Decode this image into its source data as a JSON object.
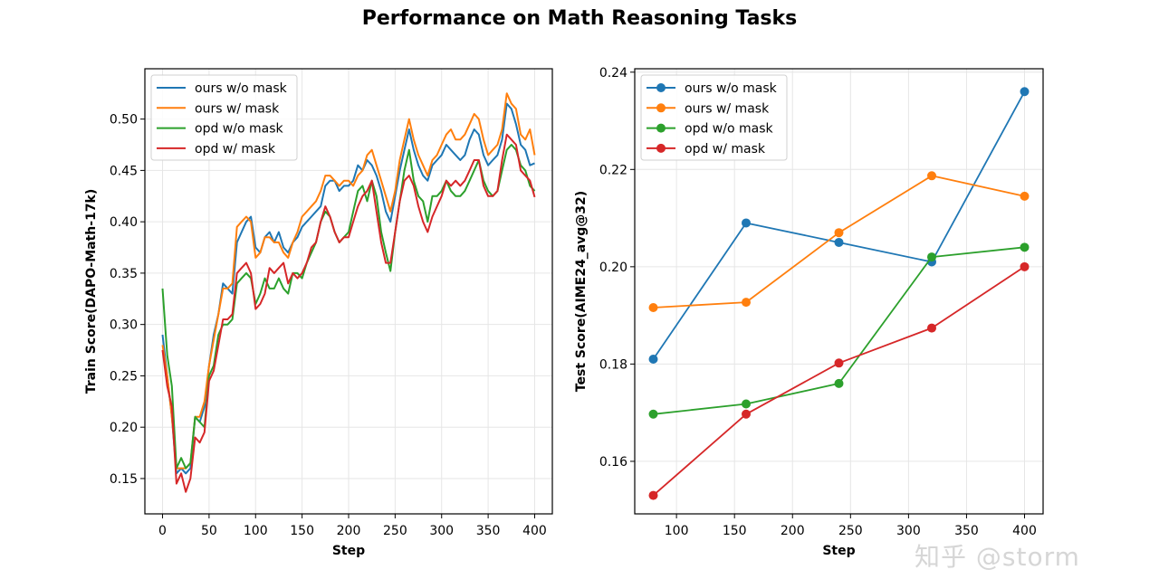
{
  "title": "Performance on Math Reasoning Tasks",
  "watermark": "知乎 @storm",
  "chart_data": [
    {
      "type": "line",
      "xlabel": "Step",
      "ylabel": "Train Score(DAPO-Math-17k)",
      "xlim": [
        -19,
        419
      ],
      "ylim": [
        0.1156,
        0.549
      ],
      "xticks": [
        "0",
        "50",
        "100",
        "150",
        "200",
        "250",
        "300",
        "350",
        "400"
      ],
      "yticks": [
        "0.15",
        "0.20",
        "0.25",
        "0.30",
        "0.35",
        "0.40",
        "0.45",
        "0.50"
      ],
      "grid": true,
      "legend": "top-left",
      "x": [
        0,
        5,
        10,
        15,
        20,
        25,
        30,
        35,
        40,
        45,
        50,
        55,
        60,
        65,
        70,
        75,
        80,
        85,
        90,
        95,
        100,
        105,
        110,
        115,
        120,
        125,
        130,
        135,
        140,
        145,
        150,
        155,
        160,
        165,
        170,
        175,
        180,
        185,
        190,
        195,
        200,
        205,
        210,
        215,
        220,
        225,
        230,
        235,
        240,
        245,
        250,
        255,
        260,
        265,
        270,
        275,
        280,
        285,
        290,
        295,
        300,
        305,
        310,
        315,
        320,
        325,
        330,
        335,
        340,
        345,
        350,
        355,
        360,
        365,
        370,
        375,
        380,
        385,
        390,
        395,
        400
      ],
      "series": [
        {
          "name": "ours w/o mask",
          "color": "#1f77b4",
          "values": [
            0.29,
            0.25,
            0.21,
            0.155,
            0.16,
            0.155,
            0.16,
            0.21,
            0.205,
            0.22,
            0.26,
            0.29,
            0.31,
            0.34,
            0.335,
            0.33,
            0.38,
            0.39,
            0.4,
            0.405,
            0.375,
            0.37,
            0.385,
            0.39,
            0.38,
            0.39,
            0.375,
            0.37,
            0.38,
            0.385,
            0.395,
            0.4,
            0.405,
            0.41,
            0.415,
            0.435,
            0.44,
            0.44,
            0.43,
            0.435,
            0.435,
            0.44,
            0.455,
            0.45,
            0.46,
            0.455,
            0.445,
            0.43,
            0.41,
            0.4,
            0.425,
            0.45,
            0.47,
            0.49,
            0.47,
            0.455,
            0.445,
            0.44,
            0.455,
            0.46,
            0.465,
            0.475,
            0.47,
            0.465,
            0.46,
            0.465,
            0.48,
            0.49,
            0.485,
            0.465,
            0.455,
            0.46,
            0.465,
            0.48,
            0.515,
            0.51,
            0.495,
            0.475,
            0.47,
            0.455,
            0.457
          ]
        },
        {
          "name": "ours w/ mask",
          "color": "#ff7f0e",
          "values": [
            0.28,
            0.25,
            0.21,
            0.16,
            0.16,
            0.16,
            0.165,
            0.21,
            0.21,
            0.225,
            0.26,
            0.285,
            0.31,
            0.335,
            0.335,
            0.34,
            0.395,
            0.4,
            0.405,
            0.4,
            0.365,
            0.37,
            0.385,
            0.385,
            0.38,
            0.38,
            0.37,
            0.365,
            0.38,
            0.39,
            0.405,
            0.41,
            0.415,
            0.42,
            0.43,
            0.445,
            0.445,
            0.44,
            0.435,
            0.44,
            0.44,
            0.435,
            0.445,
            0.45,
            0.465,
            0.47,
            0.455,
            0.44,
            0.425,
            0.41,
            0.43,
            0.46,
            0.48,
            0.5,
            0.48,
            0.465,
            0.455,
            0.445,
            0.46,
            0.465,
            0.475,
            0.485,
            0.49,
            0.48,
            0.48,
            0.485,
            0.495,
            0.505,
            0.5,
            0.48,
            0.465,
            0.47,
            0.475,
            0.49,
            0.525,
            0.515,
            0.51,
            0.485,
            0.48,
            0.49,
            0.465
          ]
        },
        {
          "name": "opd w/o mask",
          "color": "#2ca02c",
          "values": [
            0.335,
            0.27,
            0.24,
            0.16,
            0.17,
            0.16,
            0.165,
            0.21,
            0.205,
            0.2,
            0.25,
            0.26,
            0.29,
            0.3,
            0.3,
            0.305,
            0.34,
            0.345,
            0.35,
            0.345,
            0.32,
            0.33,
            0.345,
            0.335,
            0.335,
            0.345,
            0.335,
            0.33,
            0.35,
            0.35,
            0.345,
            0.36,
            0.37,
            0.38,
            0.4,
            0.41,
            0.405,
            0.39,
            0.38,
            0.385,
            0.39,
            0.41,
            0.43,
            0.435,
            0.42,
            0.44,
            0.425,
            0.39,
            0.37,
            0.352,
            0.39,
            0.42,
            0.45,
            0.47,
            0.44,
            0.425,
            0.42,
            0.4,
            0.425,
            0.425,
            0.43,
            0.44,
            0.43,
            0.425,
            0.425,
            0.43,
            0.44,
            0.45,
            0.46,
            0.44,
            0.43,
            0.425,
            0.43,
            0.45,
            0.47,
            0.475,
            0.47,
            0.455,
            0.45,
            0.435,
            0.43
          ]
        },
        {
          "name": "opd w/ mask",
          "color": "#d62728",
          "values": [
            0.275,
            0.24,
            0.22,
            0.145,
            0.155,
            0.137,
            0.15,
            0.19,
            0.185,
            0.195,
            0.245,
            0.255,
            0.28,
            0.305,
            0.305,
            0.31,
            0.35,
            0.355,
            0.36,
            0.35,
            0.315,
            0.32,
            0.33,
            0.355,
            0.35,
            0.355,
            0.36,
            0.34,
            0.35,
            0.345,
            0.35,
            0.36,
            0.375,
            0.38,
            0.4,
            0.415,
            0.405,
            0.39,
            0.38,
            0.385,
            0.385,
            0.4,
            0.415,
            0.425,
            0.43,
            0.44,
            0.41,
            0.38,
            0.36,
            0.36,
            0.39,
            0.42,
            0.44,
            0.445,
            0.435,
            0.415,
            0.4,
            0.39,
            0.405,
            0.415,
            0.425,
            0.44,
            0.435,
            0.44,
            0.435,
            0.44,
            0.45,
            0.46,
            0.46,
            0.435,
            0.425,
            0.425,
            0.43,
            0.46,
            0.485,
            0.48,
            0.475,
            0.45,
            0.445,
            0.44,
            0.424
          ]
        }
      ]
    },
    {
      "type": "line",
      "xlabel": "Step",
      "ylabel": "Test Score(AIME24_avg@32)",
      "xlim": [
        64,
        416
      ],
      "ylim": [
        0.1492,
        0.2407
      ],
      "xticks": [
        "100",
        "150",
        "200",
        "250",
        "300",
        "350",
        "400"
      ],
      "yticks": [
        "0.16",
        "0.18",
        "0.20",
        "0.22",
        "0.24"
      ],
      "grid": true,
      "legend": "top-left",
      "markers": true,
      "x": [
        80,
        160,
        240,
        320,
        400
      ],
      "series": [
        {
          "name": "ours w/o mask",
          "color": "#1f77b4",
          "values": [
            0.181,
            0.209,
            0.205,
            0.201,
            0.236
          ]
        },
        {
          "name": "ours w/ mask",
          "color": "#ff7f0e",
          "values": [
            0.1916,
            0.1927,
            0.207,
            0.2187,
            0.2145
          ]
        },
        {
          "name": "opd w/o mask",
          "color": "#2ca02c",
          "values": [
            0.1697,
            0.1718,
            0.176,
            0.202,
            0.204
          ]
        },
        {
          "name": "opd w/ mask",
          "color": "#d62728",
          "values": [
            0.153,
            0.1697,
            0.1802,
            0.1874,
            0.2
          ]
        }
      ]
    }
  ]
}
